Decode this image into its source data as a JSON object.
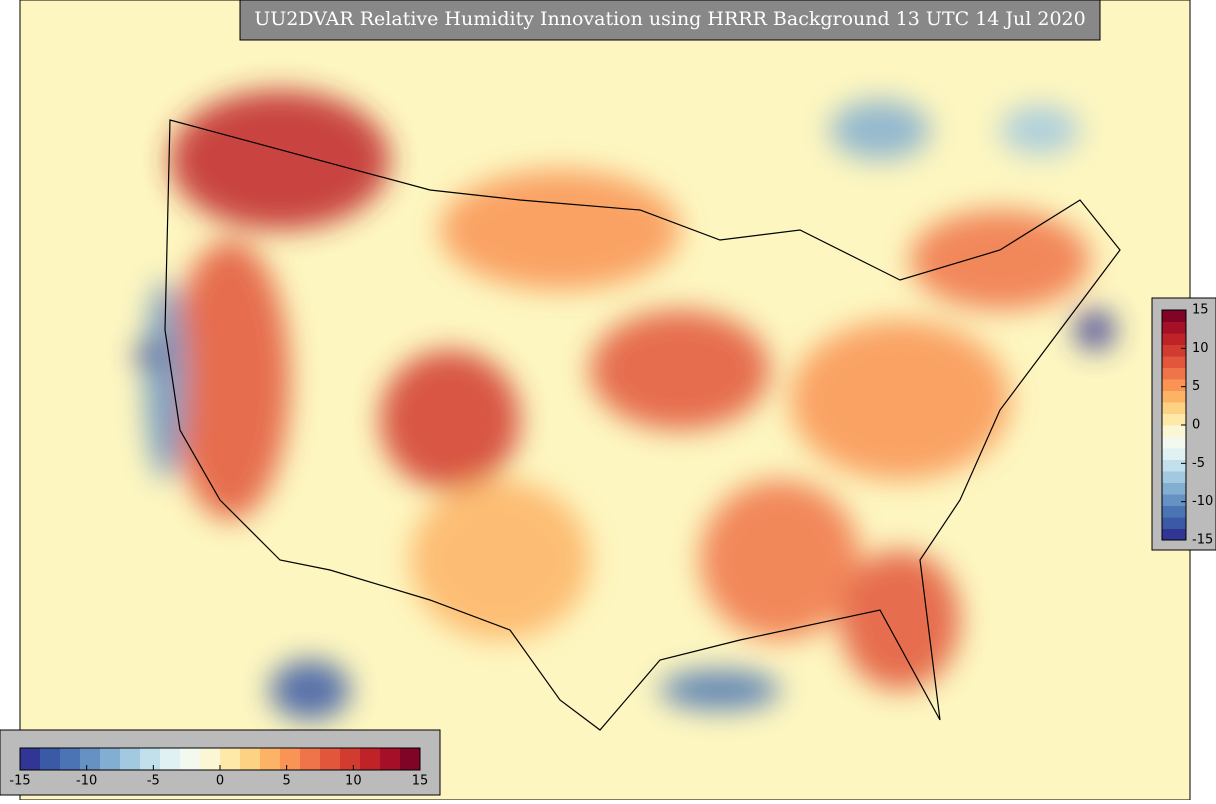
{
  "title": "UU2DVAR Relative Humidity Innovation using HRRR Background 13 UTC 14 Jul 2020",
  "colorbar": {
    "lim": [
      -15,
      15
    ],
    "ticks": [
      -15,
      -10,
      -5,
      0,
      5,
      10,
      15
    ],
    "colors": [
      "#313695",
      "#3a5aa6",
      "#4a74b4",
      "#6592c2",
      "#82aed2",
      "#a3c9e0",
      "#c2dfec",
      "#e0f1f4",
      "#f3f9ee",
      "#fbf7d5",
      "#fee9a8",
      "#fdd283",
      "#fdb366",
      "#f99455",
      "#f0744a",
      "#e2563b",
      "#d23b2f",
      "#bf2327",
      "#a50f27",
      "#7f0426"
    ]
  }
}
